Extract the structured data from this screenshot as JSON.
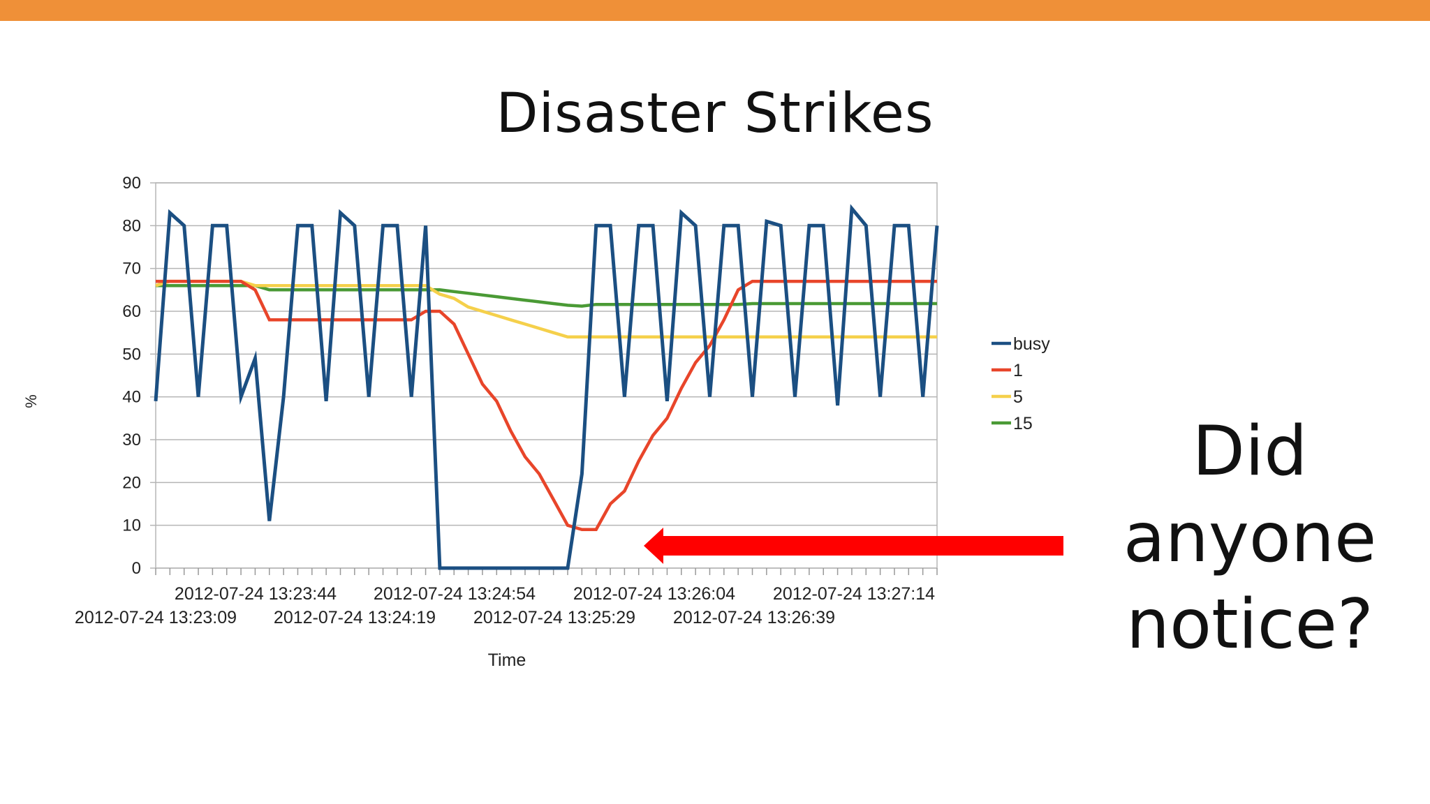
{
  "slide": {
    "title": "Disaster Strikes",
    "callout_lines": [
      "Did",
      "anyone",
      "notice?"
    ],
    "accent_color": "#ef9038",
    "arrow_color": "#ff0000"
  },
  "chart_data": {
    "type": "line",
    "title": "",
    "xlabel": "Time",
    "ylabel": "%",
    "ylim": [
      0,
      90
    ],
    "yticks": [
      0,
      10,
      20,
      30,
      40,
      50,
      60,
      70,
      80,
      90
    ],
    "grid": true,
    "legend": "right",
    "x_tick_labels": [
      "2012-07-24  13:23:09",
      "2012-07-24  13:23:44",
      "2012-07-24  13:24:19",
      "2012-07-24  13:24:54",
      "2012-07-24  13:25:29",
      "2012-07-24  13:26:04",
      "2012-07-24  13:26:39",
      "2012-07-24  13:27:14"
    ],
    "x_start": "2012-07-24 13:23:09",
    "x_end": "2012-07-24 13:27:14",
    "series": [
      {
        "name": "busy",
        "color": "#1b4f82",
        "values": [
          39,
          83,
          80,
          40,
          80,
          80,
          40,
          49,
          11,
          40,
          80,
          80,
          39,
          83,
          80,
          40,
          80,
          80,
          40,
          80,
          0,
          0,
          0,
          0,
          0,
          0,
          0,
          0,
          0,
          0,
          22,
          80,
          80,
          40,
          80,
          80,
          39,
          83,
          80,
          40,
          80,
          80,
          40,
          81,
          80,
          40,
          80,
          80,
          38,
          84,
          80,
          40,
          80,
          80,
          40,
          80
        ]
      },
      {
        "name": "1",
        "color": "#e8452a",
        "values": [
          67,
          67,
          67,
          67,
          67,
          67,
          67,
          65,
          58,
          58,
          58,
          58,
          58,
          58,
          58,
          58,
          58,
          58,
          58,
          60,
          60,
          57,
          50,
          43,
          39,
          32,
          26,
          22,
          16,
          10,
          9,
          9,
          15,
          18,
          25,
          31,
          35,
          42,
          48,
          52,
          58,
          65,
          67,
          67,
          67,
          67,
          67,
          67,
          67,
          67,
          67,
          67,
          67,
          67,
          67,
          67
        ]
      },
      {
        "name": "5",
        "color": "#f5d04b",
        "values": [
          66,
          67,
          67,
          67,
          67,
          67,
          67,
          66,
          66,
          66,
          66,
          66,
          66,
          66,
          66,
          66,
          66,
          66,
          66,
          66,
          64,
          63,
          61,
          60,
          59,
          58,
          57,
          56,
          55,
          54,
          54,
          54,
          54,
          54,
          54,
          54,
          54,
          54,
          54,
          54,
          54,
          54,
          54,
          54,
          54,
          54,
          54,
          54,
          54,
          54,
          54,
          54,
          54,
          54,
          54,
          54
        ]
      },
      {
        "name": "15",
        "color": "#4a9a35",
        "values": [
          66,
          66,
          66,
          66,
          66,
          66,
          66,
          66,
          65,
          65,
          65,
          65,
          65,
          65,
          65,
          65,
          65,
          65,
          65,
          65,
          65,
          64.6,
          64.2,
          63.8,
          63.4,
          63,
          62.6,
          62.2,
          61.8,
          61.4,
          61.2,
          61.6,
          61.6,
          61.6,
          61.6,
          61.6,
          61.6,
          61.6,
          61.6,
          61.6,
          61.6,
          61.6,
          61.8,
          61.8,
          61.8,
          61.8,
          61.8,
          61.8,
          61.8,
          61.8,
          61.8,
          61.8,
          61.8,
          61.8,
          61.8,
          61.8
        ]
      }
    ]
  }
}
